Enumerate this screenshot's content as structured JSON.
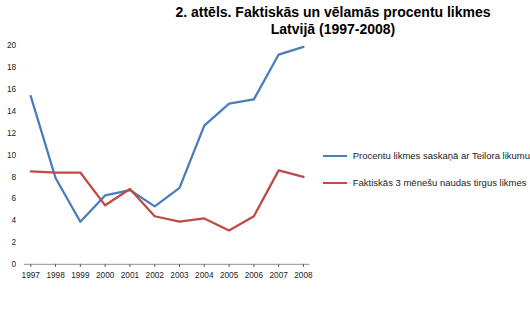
{
  "chart_data": {
    "type": "line",
    "title": "2. attēls. Faktiskās un vēlamās procentu likmes Latvijā (1997-2008)",
    "categories": [
      "1997",
      "1998",
      "1999",
      "2000",
      "2001",
      "2002",
      "2003",
      "2004",
      "2005",
      "2006",
      "2007",
      "2008"
    ],
    "series": [
      {
        "name": "Procentu likmes saskaņā ar Teilora likumu",
        "color": "#4a7ebb",
        "values": [
          15.4,
          7.9,
          3.9,
          6.3,
          6.8,
          5.3,
          7.0,
          12.7,
          14.7,
          15.1,
          19.2,
          19.9
        ]
      },
      {
        "name": "Faktiskās 3 mēnešu naudas tirgus likmes",
        "color": "#be4b48",
        "values": [
          8.5,
          8.4,
          8.4,
          5.4,
          6.9,
          4.4,
          3.9,
          4.2,
          3.1,
          4.4,
          8.6,
          8.0
        ]
      }
    ],
    "ylim": [
      0,
      20
    ],
    "yticks": [
      0,
      2,
      4,
      6,
      8,
      10,
      12,
      14,
      16,
      18,
      20
    ],
    "grid": false,
    "legend": "right"
  }
}
